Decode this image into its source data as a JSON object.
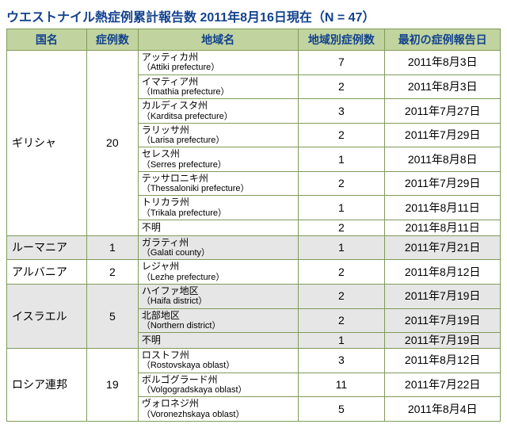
{
  "title": "ウエストナイル熱症例累計報告数 2011年8月16日現在（N = 47）",
  "headers": {
    "country": "国名",
    "cases": "症例数",
    "region": "地域名",
    "region_cases": "地域別症例数",
    "first_date": "最初の症例報告日"
  },
  "rows": [
    {
      "country": "ギリシャ",
      "count": "20",
      "span": 8,
      "region_jp": "アッティカ州",
      "region_en": "（Attiki prefecture）",
      "rcount": "7",
      "date": "2011年8月3日",
      "shade": false
    },
    {
      "region_jp": "イマティア州",
      "region_en": "（Imathia prefecture）",
      "rcount": "2",
      "date": "2011年8月3日",
      "shade": false
    },
    {
      "region_jp": "カルディスタ州",
      "region_en": "（Karditsa prefecture）",
      "rcount": "3",
      "date": "2011年7月27日",
      "shade": false
    },
    {
      "region_jp": "ラリッサ州",
      "region_en": "（Larisa prefecture）",
      "rcount": "2",
      "date": "2011年7月29日",
      "shade": false
    },
    {
      "region_jp": "セレス州",
      "region_en": "（Serres prefecture）",
      "rcount": "1",
      "date": "2011年8月8日",
      "shade": false
    },
    {
      "region_jp": "テッサロニキ州",
      "region_en": "（Thessaloniki prefecture）",
      "rcount": "2",
      "date": "2011年7月29日",
      "shade": false
    },
    {
      "region_jp": "トリカラ州",
      "region_en": "（Trikala prefecture）",
      "rcount": "1",
      "date": "2011年8月11日",
      "shade": false
    },
    {
      "region_jp": "不明",
      "region_en": "",
      "rcount": "2",
      "date": "2011年8月11日",
      "shade": false
    },
    {
      "country": "ルーマニア",
      "count": "1",
      "span": 1,
      "region_jp": "ガラティ州",
      "region_en": "（Galati county）",
      "rcount": "1",
      "date": "2011年7月21日",
      "shade": true
    },
    {
      "country": "アルバニア",
      "count": "2",
      "span": 1,
      "region_jp": "レジャ州",
      "region_en": "（Lezhe prefecture）",
      "rcount": "2",
      "date": "2011年8月12日",
      "shade": false
    },
    {
      "country": "イスラエル",
      "count": "5",
      "span": 3,
      "region_jp": "ハイファ地区",
      "region_en": "（Haifa district）",
      "rcount": "2",
      "date": "2011年7月19日",
      "shade": true
    },
    {
      "region_jp": "北部地区",
      "region_en": "（Northern district）",
      "rcount": "2",
      "date": "2011年7月19日",
      "shade": true
    },
    {
      "region_jp": "不明",
      "region_en": "",
      "rcount": "1",
      "date": "2011年7月19日",
      "shade": true
    },
    {
      "country": "ロシア連邦",
      "count": "19",
      "span": 3,
      "region_jp": "ロストフ州",
      "region_en": "（Rostovskaya oblast）",
      "rcount": "3",
      "date": "2011年8月12日",
      "shade": false
    },
    {
      "region_jp": "ボルゴグラード州",
      "region_en": "（Volgogradskaya oblast）",
      "rcount": "11",
      "date": "2011年7月22日",
      "shade": false
    },
    {
      "region_jp": "ヴォロネジ州",
      "region_en": "（Voronezhskaya oblast）",
      "rcount": "5",
      "date": "2011年8月4日",
      "shade": false
    }
  ]
}
